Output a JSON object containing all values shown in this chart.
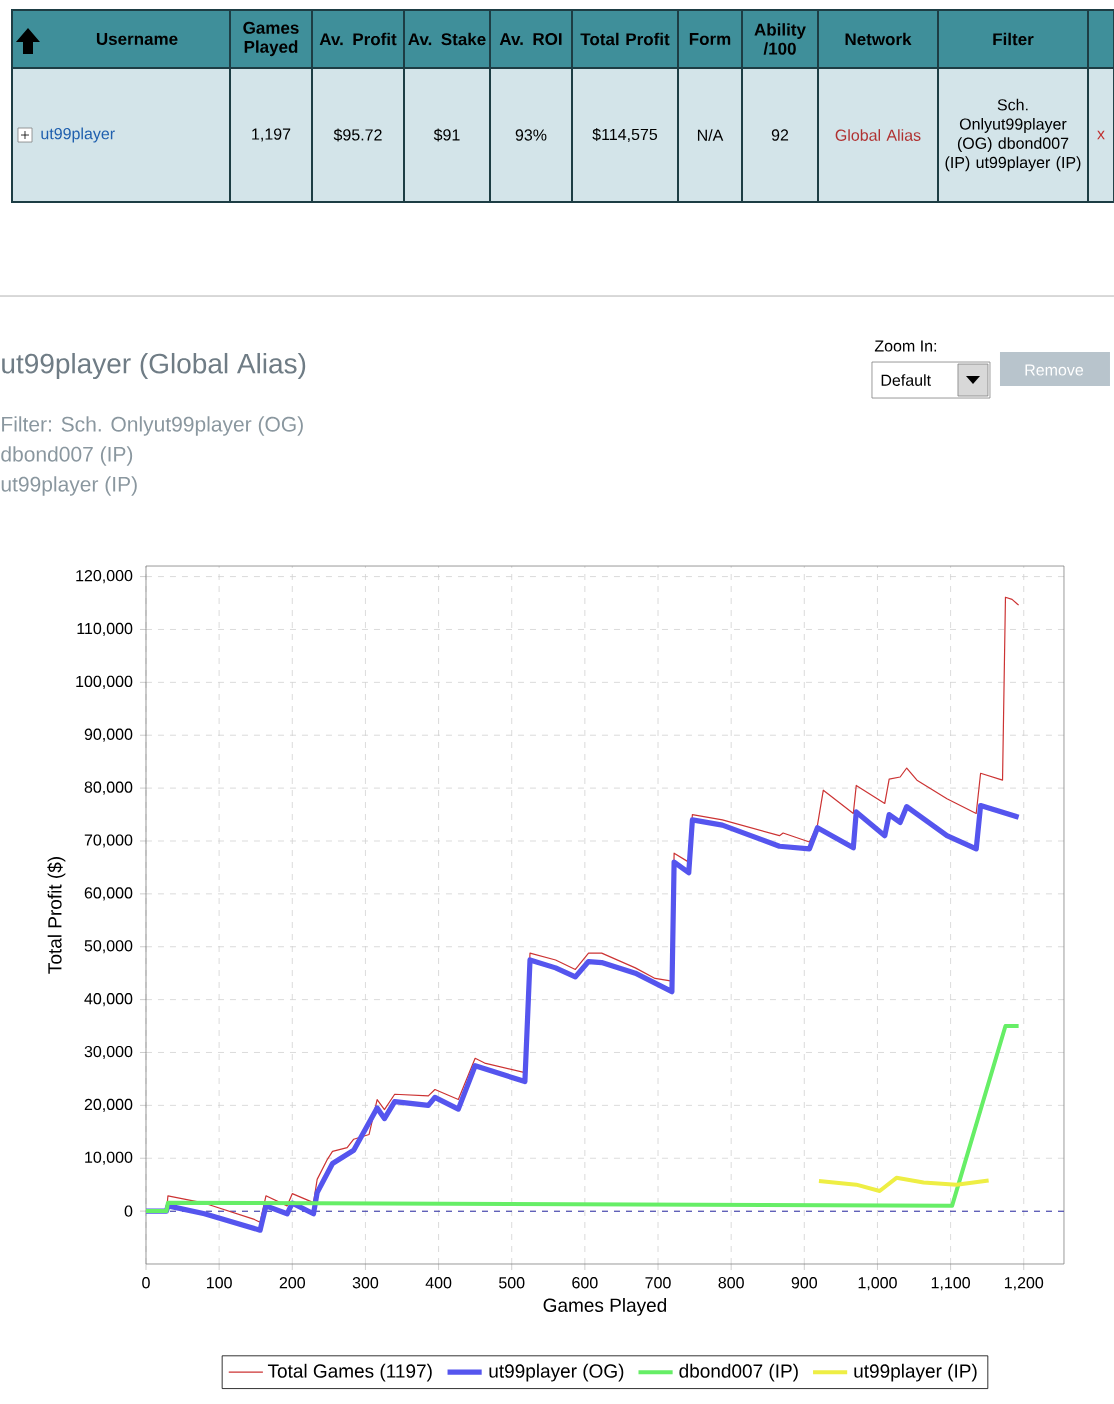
{
  "chart_data": [
    {
      "type": "other",
      "categories": [
        "Username",
        "Games Played",
        "Av. Profit",
        "Av. Stake",
        "Av. ROI",
        "Total Profit",
        "Form",
        "Ability /100",
        "Network",
        "Filter",
        null
      ],
      "annotations": [
        "ut99player",
        "1,197",
        "$95.72",
        "$91",
        "93%",
        "$114,575",
        "N/A",
        "92",
        "Global Alias",
        "Sch. Onlyut99player (OG) dbond007 (IP) ut99player (IP)",
        "x"
      ]
    },
    {
      "type": "line",
      "title": "ut99player (Global Alias)",
      "subtitle": "Filter: Sch. Onlyut99player (OG)",
      "annotations": [
        "dbond007 (IP)",
        "ut99player (IP)",
        "Zoom In:",
        "Default",
        "Remove"
      ],
      "xlabel": "Games Played",
      "ylabel": "Total Profit ($)",
      "xlim": [
        0,
        1255
      ],
      "ylim": [
        -10000,
        122000
      ],
      "xticks": [
        0,
        100,
        200,
        300,
        400,
        500,
        600,
        700,
        800,
        900,
        {
          "value": 1000,
          "label": "1,000"
        },
        {
          "value": 1100,
          "label": "1,100"
        },
        {
          "value": 1200,
          "label": "1,200"
        }
      ],
      "yticks": [
        0,
        {
          "value": 10000,
          "label": "10,000"
        },
        {
          "value": 20000,
          "label": "20,000"
        },
        {
          "value": 30000,
          "label": "30,000"
        },
        {
          "value": 40000,
          "label": "40,000"
        },
        {
          "value": 50000,
          "label": "50,000"
        },
        {
          "value": 60000,
          "label": "60,000"
        },
        {
          "value": 70000,
          "label": "70,000"
        },
        {
          "value": 80000,
          "label": "80,000"
        },
        {
          "value": 90000,
          "label": "90,000"
        },
        {
          "value": 100000,
          "label": "100,000"
        },
        {
          "value": 110000,
          "label": "110,000"
        },
        {
          "value": 120000,
          "label": "120,000"
        }
      ],
      "grid": true,
      "legend": "bottom",
      "ref_lines": [
        {
          "axis": "y",
          "value": 0,
          "color": "#3333aa",
          "line_style": "dashed"
        }
      ],
      "series": [
        {
          "name": "Total Games (1197)",
          "color": "#cc3333",
          "x": [
            0,
            28,
            30,
            80,
            147,
            156,
            164,
            193,
            200,
            229,
            234,
            248,
            255,
            275,
            284,
            305,
            316,
            326,
            340,
            386,
            395,
            427,
            450,
            463,
            518,
            525,
            560,
            587,
            605,
            623,
            669,
            696,
            719,
            722,
            742,
            747,
            788,
            866,
            871,
            907,
            918,
            926,
            967,
            971,
            1010,
            1016,
            1031,
            1040,
            1054,
            1095,
            1135,
            1141,
            1171,
            1175,
            1184,
            1193
          ],
          "values": [
            0,
            0,
            2900,
            1500,
            -1500,
            -2100,
            2900,
            1000,
            3300,
            1600,
            6000,
            9800,
            11300,
            12000,
            13600,
            14500,
            21100,
            19200,
            22100,
            21800,
            23000,
            21100,
            28900,
            28000,
            26200,
            48800,
            47500,
            45700,
            48800,
            48800,
            46000,
            44000,
            43500,
            67700,
            66000,
            75000,
            74000,
            71000,
            71500,
            69800,
            73000,
            79600,
            75200,
            80500,
            77100,
            81700,
            82100,
            83800,
            81500,
            78000,
            75200,
            82800,
            81500,
            116100,
            115700,
            114600
          ]
        },
        {
          "name": "ut99player (OG)",
          "color": "#5555ee",
          "x": [
            0,
            28,
            30,
            80,
            156,
            164,
            193,
            200,
            229,
            234,
            255,
            284,
            316,
            326,
            340,
            386,
            395,
            427,
            450,
            518,
            525,
            560,
            587,
            605,
            623,
            669,
            719,
            722,
            742,
            747,
            788,
            866,
            907,
            918,
            967,
            971,
            1010,
            1016,
            1031,
            1040,
            1095,
            1135,
            1141,
            1193
          ],
          "values": [
            0,
            0,
            1000,
            -500,
            -3600,
            1000,
            -500,
            1500,
            -500,
            3500,
            9000,
            11500,
            19500,
            17500,
            20700,
            20000,
            21500,
            19300,
            27500,
            24500,
            47500,
            46000,
            44300,
            47200,
            47000,
            45000,
            41500,
            66000,
            64000,
            74000,
            73000,
            69000,
            68500,
            72500,
            68700,
            75500,
            71000,
            75000,
            73500,
            76500,
            71000,
            68500,
            76700,
            74500
          ]
        },
        {
          "name": "dbond007 (IP)",
          "color": "#66ee66",
          "x": [
            0,
            28,
            30,
            1102,
            1175,
            1193
          ],
          "values": [
            0,
            0,
            1600,
            1000,
            35000,
            35000
          ]
        },
        {
          "name": "ut99player (IP)",
          "color": "#eeee44",
          "x": [
            920,
            971,
            1003,
            1026,
            1063,
            1108,
            1152
          ],
          "values": [
            5700,
            5000,
            3800,
            6300,
            5400,
            5000,
            5800
          ]
        }
      ]
    }
  ]
}
